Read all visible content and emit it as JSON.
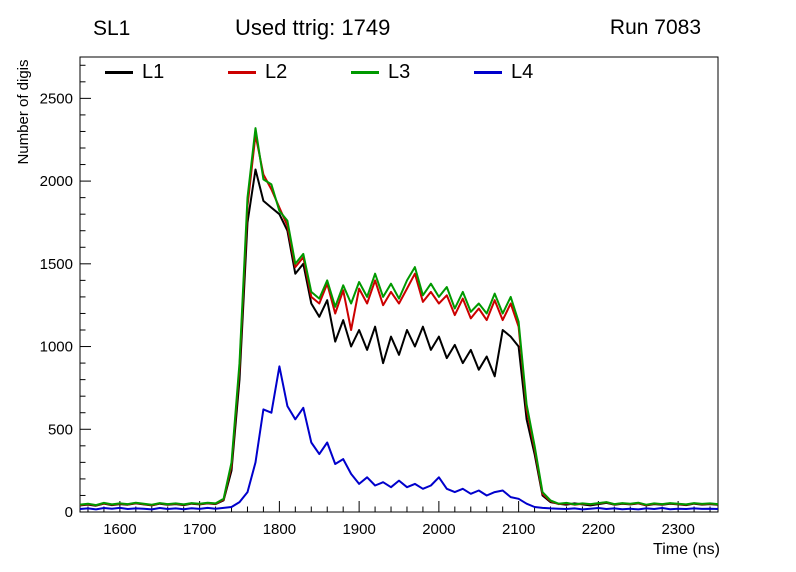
{
  "header": {
    "left_label": "SL1",
    "title": "Used ttrig: 1749",
    "right_label": "Run 7083"
  },
  "chart_data": {
    "type": "line",
    "title": "Used ttrig: 1749",
    "xlabel": "Time (ns)",
    "ylabel": "Number of digis",
    "xlim": [
      1550,
      2350
    ],
    "ylim": [
      0,
      2750
    ],
    "xticks": [
      1600,
      1700,
      1800,
      1900,
      2000,
      2100,
      2200,
      2300
    ],
    "yticks": [
      0,
      500,
      1000,
      1500,
      2000,
      2500
    ],
    "x_minor_step": 20,
    "y_minor_step": 100,
    "grid": false,
    "legend_position": "top-inside",
    "x": [
      1550,
      1560,
      1570,
      1580,
      1590,
      1600,
      1610,
      1620,
      1630,
      1640,
      1650,
      1660,
      1670,
      1680,
      1690,
      1700,
      1710,
      1720,
      1730,
      1740,
      1750,
      1760,
      1770,
      1780,
      1790,
      1800,
      1810,
      1820,
      1830,
      1840,
      1850,
      1860,
      1870,
      1880,
      1890,
      1900,
      1910,
      1920,
      1930,
      1940,
      1950,
      1960,
      1970,
      1980,
      1990,
      2000,
      2010,
      2020,
      2030,
      2040,
      2050,
      2060,
      2070,
      2080,
      2090,
      2100,
      2110,
      2120,
      2130,
      2140,
      2150,
      2160,
      2170,
      2180,
      2190,
      2200,
      2210,
      2220,
      2230,
      2240,
      2250,
      2260,
      2270,
      2280,
      2290,
      2300,
      2310,
      2320,
      2330,
      2340,
      2350
    ],
    "series": [
      {
        "name": "L1",
        "color": "#000000",
        "values": [
          40,
          45,
          38,
          50,
          42,
          48,
          44,
          52,
          46,
          40,
          50,
          44,
          48,
          42,
          50,
          46,
          52,
          48,
          70,
          250,
          800,
          1750,
          2070,
          1880,
          1840,
          1800,
          1700,
          1440,
          1500,
          1260,
          1180,
          1280,
          1030,
          1160,
          1000,
          1100,
          980,
          1120,
          900,
          1060,
          950,
          1100,
          1000,
          1120,
          980,
          1060,
          930,
          1010,
          900,
          980,
          860,
          940,
          820,
          1100,
          1060,
          1000,
          560,
          350,
          100,
          60,
          50,
          44,
          52,
          46,
          40,
          48,
          55,
          44,
          50,
          46,
          52,
          40,
          48,
          44,
          50,
          46,
          42,
          50,
          45,
          48,
          44
        ]
      },
      {
        "name": "L2",
        "color": "#cc0000",
        "values": [
          42,
          48,
          40,
          52,
          44,
          50,
          46,
          54,
          48,
          42,
          52,
          46,
          50,
          44,
          52,
          48,
          54,
          50,
          75,
          280,
          870,
          1850,
          2280,
          2040,
          1950,
          1840,
          1730,
          1480,
          1540,
          1300,
          1260,
          1380,
          1200,
          1340,
          1100,
          1350,
          1260,
          1400,
          1250,
          1330,
          1260,
          1350,
          1440,
          1270,
          1330,
          1260,
          1310,
          1190,
          1290,
          1170,
          1230,
          1160,
          1280,
          1160,
          1260,
          1120,
          620,
          380,
          110,
          65,
          48,
          52,
          44,
          50,
          46,
          52,
          58,
          46,
          52,
          48,
          54,
          42,
          50,
          46,
          52,
          48,
          44,
          52,
          47,
          50,
          46
        ]
      },
      {
        "name": "L3",
        "color": "#009900",
        "values": [
          45,
          50,
          42,
          55,
          46,
          52,
          48,
          56,
          50,
          44,
          54,
          48,
          52,
          46,
          54,
          50,
          56,
          52,
          80,
          300,
          900,
          1900,
          2320,
          2010,
          1980,
          1820,
          1760,
          1500,
          1560,
          1330,
          1290,
          1400,
          1240,
          1370,
          1260,
          1390,
          1300,
          1440,
          1300,
          1380,
          1290,
          1400,
          1480,
          1310,
          1380,
          1300,
          1360,
          1230,
          1330,
          1210,
          1260,
          1200,
          1320,
          1200,
          1300,
          1150,
          650,
          400,
          120,
          70,
          50,
          55,
          46,
          52,
          48,
          54,
          60,
          48,
          54,
          50,
          56,
          44,
          52,
          48,
          54,
          50,
          46,
          54,
          49,
          52,
          48
        ]
      },
      {
        "name": "L4",
        "color": "#0000cc",
        "values": [
          18,
          22,
          16,
          24,
          20,
          25,
          18,
          22,
          20,
          16,
          24,
          18,
          22,
          17,
          23,
          19,
          25,
          20,
          25,
          30,
          60,
          120,
          300,
          620,
          600,
          880,
          640,
          560,
          630,
          420,
          350,
          420,
          290,
          320,
          230,
          170,
          210,
          160,
          180,
          150,
          190,
          150,
          170,
          140,
          160,
          210,
          140,
          120,
          140,
          110,
          130,
          100,
          120,
          130,
          90,
          80,
          50,
          30,
          25,
          22,
          20,
          18,
          22,
          16,
          20,
          24,
          18,
          22,
          17,
          20,
          16,
          22,
          18,
          24,
          17,
          20,
          18,
          22,
          19,
          20,
          18
        ]
      }
    ]
  }
}
